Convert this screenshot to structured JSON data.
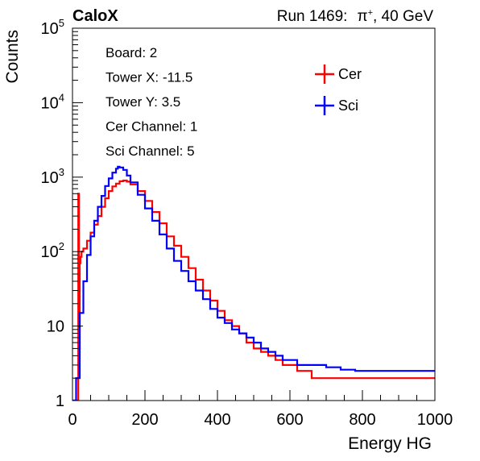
{
  "header": {
    "left_label": "CaloX",
    "right_prefix": "Run 1469:",
    "right_particle": "π",
    "right_charge": "+",
    "right_suffix": ", 40 GeV"
  },
  "info_lines": [
    "Board: 2",
    "Tower X: -11.5",
    "Tower Y: 3.5",
    "Cer Channel: 1",
    "Sci Channel: 5"
  ],
  "chart_data": {
    "type": "line",
    "title": "",
    "xlabel": "Energy HG",
    "ylabel": "Counts",
    "xlim": [
      0,
      1000
    ],
    "ylim": [
      1,
      100000
    ],
    "yscale": "log",
    "grid": false,
    "legend_position": "top-right",
    "x_ticks": [
      {
        "value": 0,
        "label": "0"
      },
      {
        "value": 200,
        "label": "200"
      },
      {
        "value": 400,
        "label": "400"
      },
      {
        "value": 600,
        "label": "600"
      },
      {
        "value": 800,
        "label": "800"
      },
      {
        "value": 1000,
        "label": "1000"
      }
    ],
    "y_ticks": [
      {
        "value": 1,
        "base": "1",
        "exp": ""
      },
      {
        "value": 10,
        "base": "10",
        "exp": ""
      },
      {
        "value": 100,
        "base": "10",
        "exp": "2"
      },
      {
        "value": 1000,
        "base": "10",
        "exp": "3"
      },
      {
        "value": 10000,
        "base": "10",
        "exp": "4"
      },
      {
        "value": 100000,
        "base": "10",
        "exp": "5"
      }
    ],
    "series": [
      {
        "name": "Cer",
        "color": "#ff0000",
        "x": [
          0,
          10,
          14,
          16,
          18,
          20,
          22,
          25,
          30,
          40,
          50,
          60,
          70,
          80,
          90,
          100,
          110,
          120,
          130,
          140,
          150,
          160,
          180,
          200,
          220,
          240,
          260,
          280,
          300,
          320,
          340,
          360,
          380,
          400,
          420,
          440,
          460,
          480,
          500,
          520,
          540,
          560,
          580,
          600,
          620,
          640,
          660,
          680,
          700,
          720,
          740,
          760,
          780,
          800,
          820,
          840,
          860,
          880,
          900,
          920,
          940,
          960,
          980,
          1000
        ],
        "values": [
          1,
          1,
          1,
          600,
          5,
          70,
          85,
          100,
          110,
          140,
          180,
          230,
          300,
          400,
          520,
          650,
          750,
          820,
          880,
          900,
          870,
          800,
          650,
          480,
          340,
          240,
          160,
          120,
          85,
          60,
          42,
          30,
          22,
          16,
          12,
          10,
          8,
          6,
          5,
          4.5,
          4,
          3.5,
          3,
          3,
          2.5,
          2.5,
          2,
          2,
          2,
          2,
          2,
          2,
          2,
          2,
          2,
          2,
          2,
          2,
          2,
          2,
          2,
          2,
          2,
          2
        ]
      },
      {
        "name": "Sci",
        "color": "#0000ff",
        "x": [
          0,
          10,
          20,
          30,
          40,
          50,
          60,
          70,
          80,
          90,
          100,
          110,
          120,
          125,
          130,
          140,
          150,
          160,
          180,
          200,
          220,
          240,
          260,
          280,
          300,
          320,
          340,
          360,
          380,
          400,
          420,
          440,
          460,
          480,
          500,
          520,
          540,
          560,
          580,
          600,
          620,
          640,
          660,
          680,
          700,
          720,
          740,
          760,
          780,
          800,
          820,
          840,
          860,
          880,
          900,
          920,
          940,
          960,
          980,
          1000
        ],
        "values": [
          1,
          2,
          15,
          40,
          90,
          160,
          260,
          400,
          560,
          760,
          960,
          1150,
          1300,
          1380,
          1350,
          1250,
          1050,
          850,
          580,
          380,
          260,
          170,
          110,
          75,
          55,
          40,
          30,
          23,
          17,
          13,
          11,
          9,
          8,
          7,
          6,
          5,
          4.5,
          4,
          3.5,
          3.5,
          3,
          3,
          3,
          3,
          2.8,
          2.8,
          2.6,
          2.6,
          2.5,
          2.5,
          2.5,
          2.5,
          2.5,
          2.5,
          2.5,
          2.5,
          2.5,
          2.5,
          2.5,
          2.5
        ]
      }
    ]
  }
}
